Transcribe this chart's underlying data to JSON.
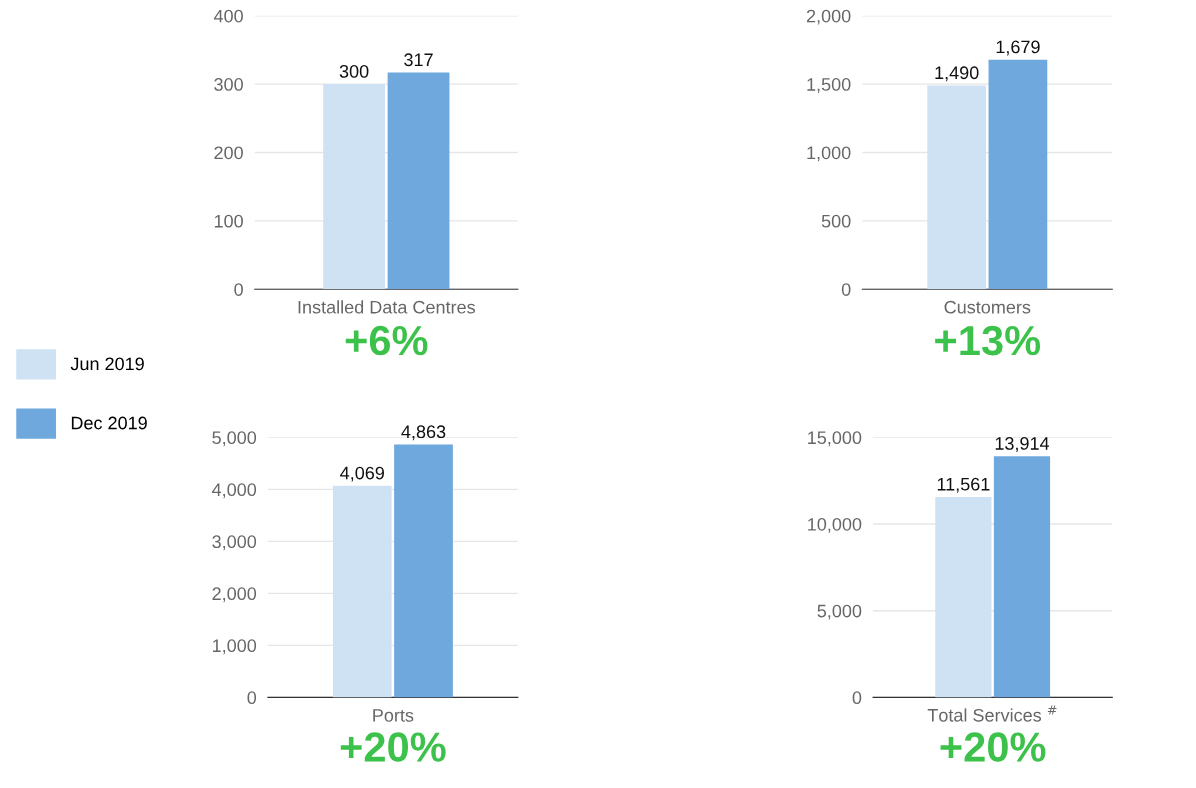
{
  "chart_data": [
    {
      "type": "bar",
      "categories": [
        "Installed Data Centres"
      ],
      "legend": "left",
      "grid": "y",
      "annotations": [
        "+6%"
      ],
      "ylim": [
        0,
        400
      ],
      "yticks": [
        0,
        100,
        200,
        300,
        400
      ],
      "series": [
        {
          "name": "Jun 2019",
          "color": "#cfe2f3",
          "values": [
            300
          ],
          "value_labels": [
            "300"
          ]
        },
        {
          "name": "Dec 2019",
          "color": "#6fa8dc",
          "values": [
            317
          ],
          "value_labels": [
            "317"
          ]
        }
      ]
    },
    {
      "type": "bar",
      "categories": [
        "Customers"
      ],
      "grid": "y",
      "annotations": [
        "+13%"
      ],
      "ylim": [
        0,
        2000
      ],
      "yticks": [
        0,
        500,
        {
          "value": 1000,
          "label": "1,000"
        },
        {
          "value": 1500,
          "label": "1,500"
        },
        {
          "value": 2000,
          "label": "2,000"
        }
      ],
      "series": [
        {
          "color": "#cfe2f3",
          "values": [
            1490
          ],
          "value_labels": [
            "1,490"
          ]
        },
        {
          "color": "#6fa8dc",
          "values": [
            1679
          ],
          "value_labels": [
            "1,679"
          ]
        }
      ]
    },
    {
      "type": "bar",
      "categories": [
        "Ports"
      ],
      "grid": "y",
      "annotations": [
        "+20%"
      ],
      "ylim": [
        0,
        5000
      ],
      "yticks": [
        0,
        {
          "value": 1000,
          "label": "1,000"
        },
        {
          "value": 2000,
          "label": "2,000"
        },
        {
          "value": 3000,
          "label": "3,000"
        },
        {
          "value": 4000,
          "label": "4,000"
        },
        {
          "value": 5000,
          "label": "5,000"
        }
      ],
      "series": [
        {
          "color": "#cfe2f3",
          "values": [
            4069
          ],
          "value_labels": [
            "4,069"
          ]
        },
        {
          "color": "#6fa8dc",
          "values": [
            4863
          ],
          "value_labels": [
            "4,863"
          ]
        }
      ]
    },
    {
      "type": "bar",
      "categories": [
        "Total Services $^{#}$"
      ],
      "grid": "y",
      "annotations": [
        "+20%"
      ],
      "ylim": [
        0,
        15000
      ],
      "yticks": [
        0,
        {
          "value": 5000,
          "label": "5,000"
        },
        {
          "value": 10000,
          "label": "10,000"
        },
        {
          "value": 15000,
          "label": "15,000"
        }
      ],
      "series": [
        {
          "color": "#cfe2f3",
          "values": [
            11561
          ],
          "value_labels": [
            "11,561"
          ]
        },
        {
          "color": "#6fa8dc",
          "values": [
            13914
          ],
          "value_labels": [
            "13,914"
          ]
        }
      ]
    }
  ]
}
